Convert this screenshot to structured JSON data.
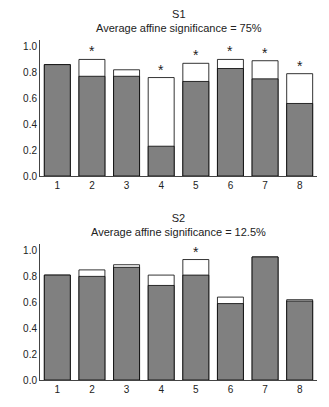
{
  "chart_data": [
    {
      "type": "bar",
      "title": "S1",
      "subtitle": "Average affine significance = 75%",
      "categories": [
        1,
        2,
        3,
        4,
        5,
        6,
        7,
        8
      ],
      "series": [
        {
          "color": "#ffffff",
          "values": [
            0.86,
            0.9,
            0.82,
            0.76,
            0.87,
            0.9,
            0.89,
            0.79
          ]
        },
        {
          "color": "#808080",
          "values": [
            0.86,
            0.77,
            0.77,
            0.23,
            0.73,
            0.83,
            0.75,
            0.56
          ]
        }
      ],
      "annotations": [
        {
          "x": 2,
          "y": 0.9,
          "text": "*"
        },
        {
          "x": 4,
          "y": 0.76,
          "text": "*"
        },
        {
          "x": 5,
          "y": 0.87,
          "text": "*"
        },
        {
          "x": 6,
          "y": 0.9,
          "text": "*"
        },
        {
          "x": 7,
          "y": 0.89,
          "text": "*"
        },
        {
          "x": 8,
          "y": 0.79,
          "text": "*"
        }
      ],
      "ylim": [
        0.0,
        1.05
      ],
      "yticks": [
        {
          "value": 0.0,
          "label": "0.0"
        },
        0.2,
        0.4,
        0.6,
        0.8,
        {
          "value": 1.0,
          "label": "1.0"
        }
      ],
      "grid": false
    },
    {
      "type": "bar",
      "title": "S2",
      "subtitle": "Average affine significance = 12.5%",
      "categories": [
        1,
        2,
        3,
        4,
        5,
        6,
        7,
        8
      ],
      "series": [
        {
          "color": "#ffffff",
          "values": [
            0.81,
            0.85,
            0.89,
            0.81,
            0.93,
            0.64,
            0.95,
            0.62
          ]
        },
        {
          "color": "#808080",
          "values": [
            0.81,
            0.8,
            0.87,
            0.73,
            0.81,
            0.59,
            0.95,
            0.61
          ]
        }
      ],
      "annotations": [
        {
          "x": 5,
          "y": 0.93,
          "text": "*"
        }
      ],
      "ylim": [
        0.0,
        1.05
      ],
      "yticks": [
        {
          "value": 0.0,
          "label": "0.0"
        },
        0.2,
        0.4,
        0.6,
        0.8,
        {
          "value": 1.0,
          "label": "1.0"
        }
      ],
      "grid": false
    }
  ]
}
